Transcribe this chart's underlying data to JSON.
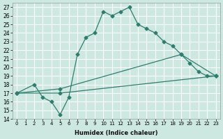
{
  "xlabel": "Humidex (Indice chaleur)",
  "bg_color": "#cce8e0",
  "grid_color": "#ffffff",
  "line_color": "#2e7d6e",
  "xlim": [
    -0.5,
    23.5
  ],
  "ylim": [
    14,
    27.5
  ],
  "xticks": [
    0,
    1,
    2,
    3,
    4,
    5,
    6,
    7,
    8,
    9,
    10,
    11,
    12,
    13,
    14,
    15,
    16,
    17,
    18,
    19,
    20,
    21,
    22,
    23
  ],
  "yticks": [
    14,
    15,
    16,
    17,
    18,
    19,
    20,
    21,
    22,
    23,
    24,
    25,
    26,
    27
  ],
  "line1_x": [
    0,
    2,
    3,
    4,
    5,
    6,
    7,
    8,
    9,
    10,
    11,
    12,
    13,
    14,
    15,
    16,
    17,
    18,
    19,
    20,
    21,
    22,
    23
  ],
  "line1_y": [
    17,
    18,
    16.5,
    16,
    14.5,
    16.5,
    21.5,
    23.5,
    24,
    26.5,
    26,
    26.5,
    27,
    25,
    24.5,
    24,
    23,
    22.5,
    21.5,
    20.5,
    19.5,
    19,
    19
  ],
  "line2_x": [
    0,
    5,
    19,
    23
  ],
  "line2_y": [
    17,
    17.5,
    21.5,
    19
  ],
  "line3_x": [
    0,
    5,
    23
  ],
  "line3_y": [
    17,
    17,
    19
  ]
}
